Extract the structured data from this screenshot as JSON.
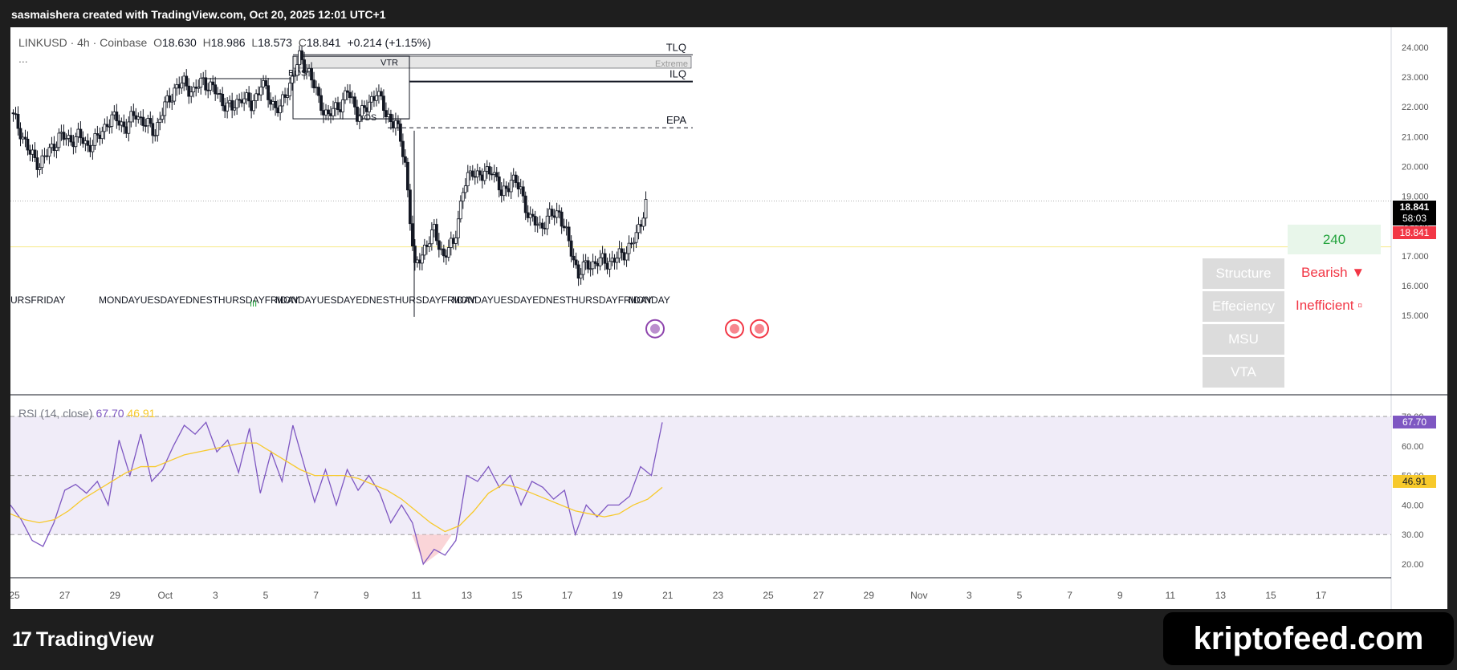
{
  "header": {
    "credit": "sasmaishera created with TradingView.com, Oct 20, 2025 12:01 UTC+1"
  },
  "legend": {
    "symbol": "LINKUSD · 4h · Coinbase",
    "o_label": "O",
    "o": "18.630",
    "h_label": "H",
    "h": "18.986",
    "l_label": "L",
    "l": "18.573",
    "c_label": "C",
    "c": "18.841",
    "change": "+0.214 (+1.15%)",
    "more": "..."
  },
  "rsi_legend": {
    "label": "RSI (14, close)",
    "rsi": "67.70",
    "ma": "46.91"
  },
  "chart_data": [
    {
      "type": "candlestick",
      "ylim": [
        14.6,
        24.6
      ],
      "y_ticks": [
        "24.000",
        "23.000",
        "22.000",
        "21.000",
        "20.000",
        "19.000",
        "18.000",
        "17.000",
        "16.000",
        "15.000"
      ],
      "x_ticks": [
        "25",
        "27",
        "29",
        "Oct",
        "3",
        "5",
        "7",
        "9",
        "11",
        "13",
        "15",
        "17",
        "19",
        "21",
        "23",
        "25",
        "27",
        "29",
        "Nov",
        "3",
        "5",
        "7",
        "9",
        "11",
        "13",
        "15",
        "17"
      ],
      "close_path": [
        21.8,
        21.2,
        20.4,
        20.1,
        20.5,
        21.0,
        20.9,
        21.0,
        20.7,
        20.9,
        21.5,
        21.6,
        21.3,
        21.8,
        21.4,
        21.2,
        22.0,
        22.6,
        22.8,
        22.5,
        22.9,
        22.6,
        22.2,
        21.9,
        22.4,
        22.0,
        22.8,
        22.2,
        21.9,
        22.8,
        23.6,
        23.2,
        22.2,
        21.7,
        22.0,
        22.5,
        21.8,
        21.9,
        22.6,
        21.7,
        21.5,
        20.1,
        16.5,
        17.3,
        17.8,
        17.0,
        17.4,
        19.2,
        19.9,
        19.6,
        20.0,
        19.0,
        19.6,
        19.2,
        18.2,
        18.0,
        18.3,
        18.5,
        17.4,
        16.4,
        16.7,
        16.8,
        16.8,
        16.9,
        17.2,
        17.6,
        18.8
      ],
      "current_price": "18.841",
      "countdown": "58:03",
      "bid_price": "18.841",
      "levels": [
        {
          "label": "TLQ",
          "value": 23.75
        },
        {
          "label": "ILQ",
          "value": 22.85
        },
        {
          "label": "EPA",
          "value": 21.3
        }
      ],
      "zone_labels": {
        "vtr": "VTR",
        "extreme": "Extreme",
        "bos1": "BOS",
        "bos2": "BOS"
      },
      "session_labels": [
        "URSFRIDAY",
        "MONDAYUESDAYEDNESTHURSDAYFRIDAY",
        "MONDAYUESDAYEDNESTHURSDAYFRIDAY",
        "MONDAYUESDAYEDNESTHURSDAYFRIDAY",
        "MONDAY"
      ],
      "marker_label": "III"
    },
    {
      "type": "line",
      "name": "RSI",
      "ylim": [
        15,
        75
      ],
      "y_ticks": [
        "70.00",
        "60.00",
        "50.00",
        "40.00",
        "30.00",
        "20.00"
      ],
      "rsi": [
        40,
        35,
        28,
        26,
        34,
        45,
        47,
        44,
        48,
        40,
        62,
        50,
        64,
        48,
        52,
        60,
        67,
        64,
        68,
        58,
        62,
        51,
        66,
        44,
        58,
        48,
        67,
        54,
        41,
        52,
        40,
        52,
        45,
        50,
        44,
        34,
        40,
        34,
        20,
        25,
        23,
        28,
        50,
        48,
        53,
        46,
        50,
        40,
        48,
        46,
        42,
        45,
        30,
        40,
        36,
        40,
        40,
        43,
        53,
        50,
        68
      ],
      "rsi_ma": [
        37,
        35,
        34,
        35,
        38,
        42,
        45,
        48,
        51,
        53,
        53,
        55,
        57,
        58,
        59,
        60,
        61,
        61,
        58,
        55,
        52,
        50,
        50,
        50,
        49,
        47,
        45,
        42,
        38,
        34,
        31,
        33,
        38,
        44,
        47,
        46,
        44,
        42,
        40,
        38,
        37,
        36,
        37,
        40,
        42,
        46
      ],
      "rsi_value": "67.70",
      "ma_value": "46.91"
    }
  ],
  "panel": {
    "timeframe": "240",
    "rows": [
      {
        "label": "Structure",
        "value": "Bearish ▼"
      },
      {
        "label": "Effeciency",
        "value": "Inefficient ▫"
      },
      {
        "label": "MSU",
        "value": ""
      },
      {
        "label": "VTA",
        "value": ""
      }
    ]
  },
  "footer": {
    "brand": "TradingView",
    "watermark": "kriptofeed.com"
  },
  "colors": {
    "candle": "#131722",
    "rsi": "#7e57c2",
    "rsi_ma": "#f7c92b",
    "bearish": "#f23645",
    "tf_green": "#22a33c"
  }
}
